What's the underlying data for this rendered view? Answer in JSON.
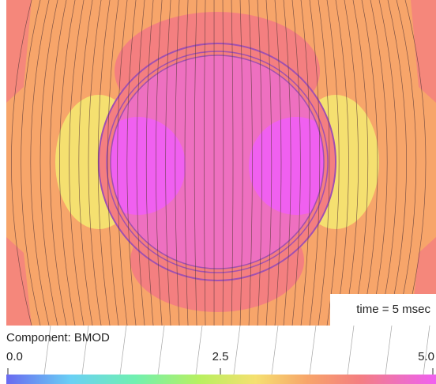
{
  "plot": {
    "annotation": "time = 5 msec"
  },
  "colorbar": {
    "title": "Component: BMOD",
    "range": [
      0,
      5
    ],
    "ticks": [
      {
        "value": 0,
        "label": "0.0"
      },
      {
        "value": 2.5,
        "label": "2.5"
      },
      {
        "value": 5,
        "label": "5.0"
      }
    ]
  }
}
